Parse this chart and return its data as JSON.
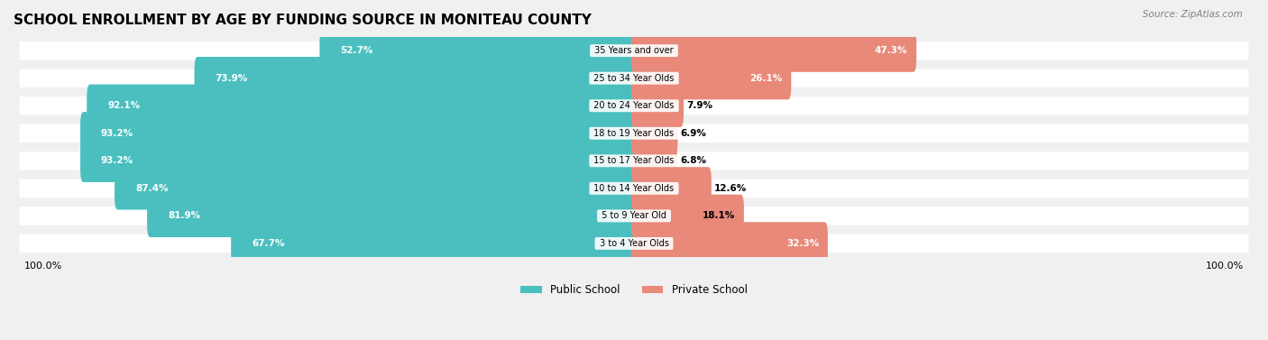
{
  "title": "SCHOOL ENROLLMENT BY AGE BY FUNDING SOURCE IN MONITEAU COUNTY",
  "source": "Source: ZipAtlas.com",
  "categories": [
    "3 to 4 Year Olds",
    "5 to 9 Year Old",
    "10 to 14 Year Olds",
    "15 to 17 Year Olds",
    "18 to 19 Year Olds",
    "20 to 24 Year Olds",
    "25 to 34 Year Olds",
    "35 Years and over"
  ],
  "public_values": [
    67.7,
    81.9,
    87.4,
    93.2,
    93.2,
    92.1,
    73.9,
    52.7
  ],
  "private_values": [
    32.3,
    18.1,
    12.6,
    6.8,
    6.9,
    7.9,
    26.1,
    47.3
  ],
  "public_color": "#4bbfbf",
  "private_color": "#e8897a",
  "background_color": "#f0f0f0",
  "bar_background": "#ffffff",
  "title_fontsize": 11,
  "label_fontsize": 8,
  "bar_height": 0.55,
  "legend_labels": [
    "Public School",
    "Private School"
  ]
}
